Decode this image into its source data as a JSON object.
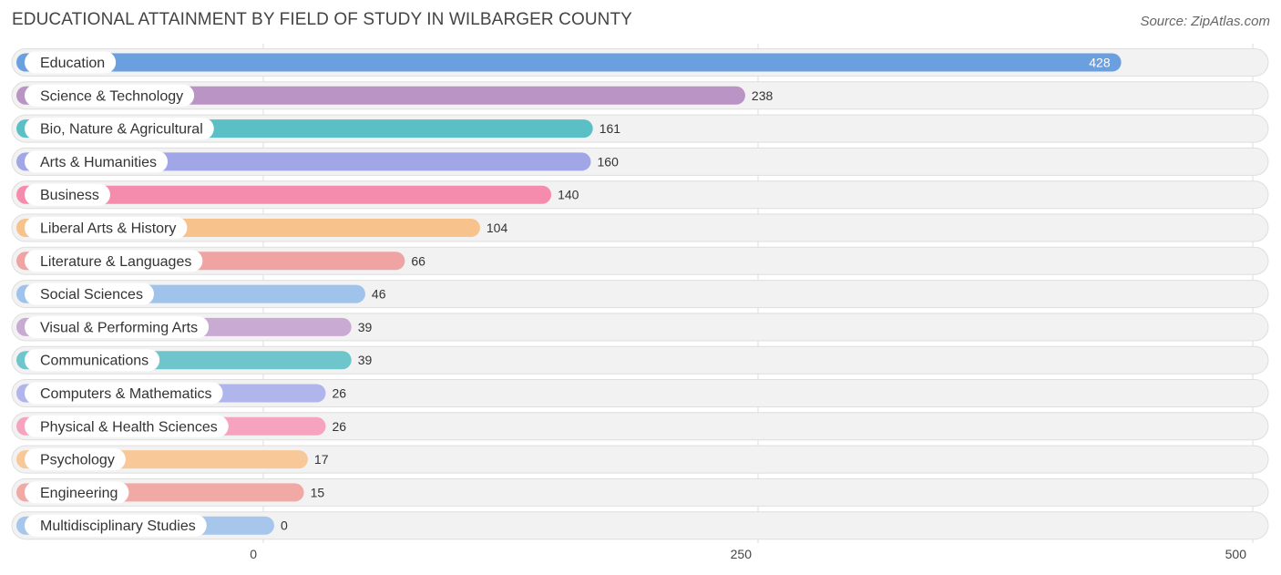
{
  "header": {
    "title": "EDUCATIONAL ATTAINMENT BY FIELD OF STUDY IN WILBARGER COUNTY",
    "source": "Source: ZipAtlas.com"
  },
  "chart_data": {
    "type": "bar",
    "orientation": "horizontal",
    "title": "EDUCATIONAL ATTAINMENT BY FIELD OF STUDY IN WILBARGER COUNTY",
    "xlabel": "",
    "ylabel": "",
    "xlim": [
      0,
      500
    ],
    "ticks": [
      "0",
      "250",
      "500"
    ],
    "tick_values": [
      0,
      250,
      500
    ],
    "grid": true,
    "categories": [
      "Education",
      "Science & Technology",
      "Bio, Nature & Agricultural",
      "Arts & Humanities",
      "Business",
      "Liberal Arts & History",
      "Literature & Languages",
      "Social Sciences",
      "Visual & Performing Arts",
      "Communications",
      "Computers & Mathematics",
      "Physical & Health Sciences",
      "Psychology",
      "Engineering",
      "Multidisciplinary Studies"
    ],
    "values": [
      428,
      238,
      161,
      160,
      140,
      104,
      66,
      46,
      39,
      39,
      26,
      26,
      17,
      15,
      0
    ],
    "value_labels": [
      "428",
      "238",
      "161",
      "160",
      "140",
      "104",
      "66",
      "46",
      "39",
      "39",
      "26",
      "26",
      "17",
      "15",
      "0"
    ],
    "colors": [
      "#6a9fe0",
      "#b994c4",
      "#5bbfc6",
      "#a1a7e6",
      "#f58cae",
      "#f8c28c",
      "#f0a3a3",
      "#9fc3ea",
      "#c9aad3",
      "#6ec5cc",
      "#b0b6eb",
      "#f6a3bf",
      "#f8c898",
      "#f1a9a5",
      "#a7c6ec"
    ]
  }
}
